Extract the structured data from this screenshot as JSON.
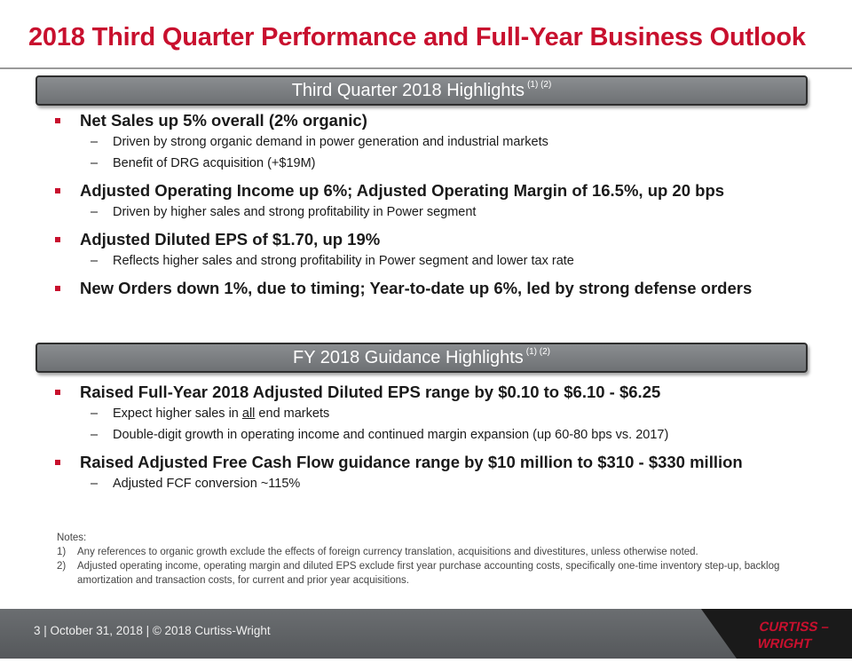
{
  "title": "2018 Third Quarter Performance and Full-Year Business Outlook",
  "section1": {
    "banner": "Third Quarter 2018 Highlights",
    "banner_sup": "(1) (2)",
    "items": [
      {
        "text": "Net Sales up 5% overall (2% organic)",
        "subs": [
          "Driven by strong organic demand in power generation and industrial markets",
          "Benefit of DRG acquisition (+$19M)"
        ]
      },
      {
        "text": "Adjusted Operating Income up 6%; Adjusted Operating Margin of 16.5%, up 20 bps",
        "subs": [
          "Driven by higher sales and strong profitability in Power segment"
        ]
      },
      {
        "text": "Adjusted Diluted EPS of $1.70, up 19%",
        "subs": [
          "Reflects higher sales and strong profitability in Power segment and lower tax rate"
        ]
      },
      {
        "text": "New Orders down 1%, due to timing; Year-to-date up 6%, led by strong defense orders",
        "subs": []
      }
    ]
  },
  "section2": {
    "banner": "FY 2018 Guidance Highlights",
    "banner_sup": "(1) (2)",
    "items": [
      {
        "text": "Raised Full-Year 2018 Adjusted Diluted EPS range by $0.10 to $6.10 - $6.25",
        "subs_custom": {
          "pre": "Expect higher sales in ",
          "underlined": "all",
          "post": " end markets"
        },
        "subs": [
          "Double-digit growth in operating income and continued margin expansion (up 60-80 bps vs. 2017)"
        ]
      },
      {
        "text": "Raised Adjusted Free Cash Flow guidance range by $10 million to $310 - $330 million",
        "subs": [
          "Adjusted FCF conversion ~115%"
        ]
      }
    ]
  },
  "bullet_dash": "–",
  "notes": {
    "heading": "Notes:",
    "items": [
      {
        "num": "1)",
        "text": "Any references to organic growth exclude the effects of foreign currency translation, acquisitions and divestitures, unless otherwise noted."
      },
      {
        "num": "2)",
        "text": "Adjusted operating income, operating margin and diluted EPS exclude first year purchase accounting costs, specifically one-time inventory step-up, backlog amortization and transaction costs, for current and prior year acquisitions."
      }
    ]
  },
  "footer": {
    "text": "3  | October 31, 2018  |  © 2018 Curtiss-Wright",
    "logo_line1": "CURTISS –",
    "logo_line2": "WRIGHT"
  },
  "colors": {
    "accent": "#c8102e",
    "banner": "#7a7d80",
    "footer": "#606366"
  }
}
